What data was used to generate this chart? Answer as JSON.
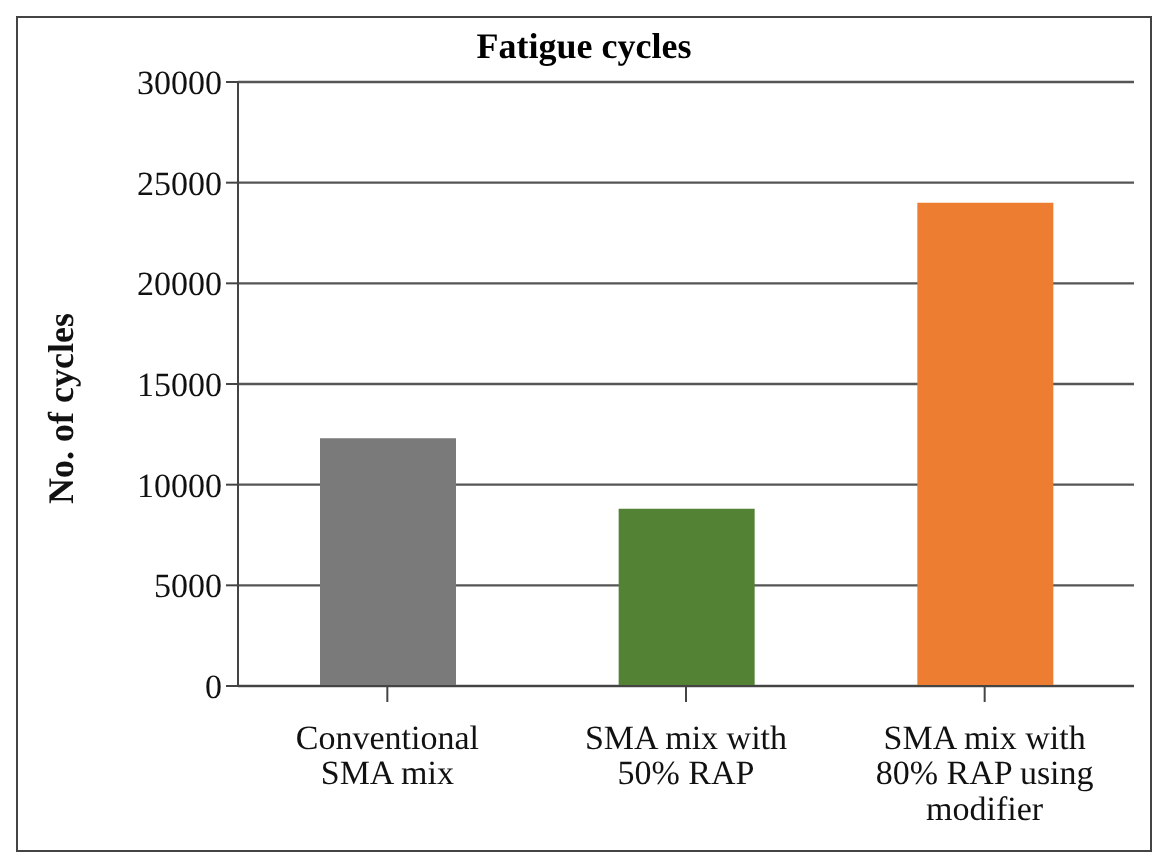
{
  "chart_data": {
    "type": "bar",
    "title": "Fatigue cycles",
    "ylabel": "No. of cycles",
    "categories": [
      "Conventional SMA mix",
      "SMA mix with 50% RAP",
      "SMA mix with 80% RAP using modifier"
    ],
    "values": [
      12300,
      8800,
      24000
    ],
    "colors": [
      "#7a7a7a",
      "#548235",
      "#ed7d31"
    ],
    "ylim": [
      0,
      30000
    ],
    "yticks": [
      0,
      5000,
      10000,
      15000,
      20000,
      25000,
      30000
    ],
    "grid": "y"
  }
}
